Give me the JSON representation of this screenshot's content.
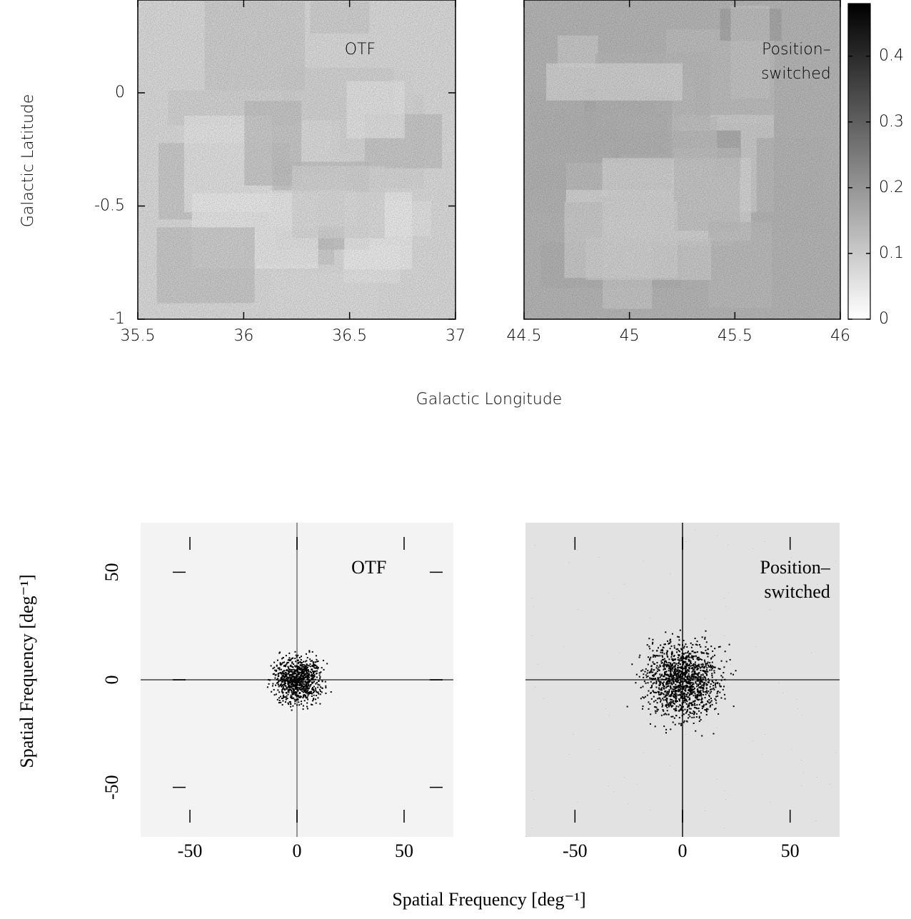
{
  "chart_data": [
    {
      "type": "heatmap",
      "annotation": [
        "OTF"
      ],
      "xlim": [
        35.5,
        37
      ],
      "ylim": [
        -1,
        0.41
      ],
      "xticks": [
        35.5,
        36,
        36.5,
        37
      ],
      "yticks": [
        0,
        -0.5,
        -1
      ],
      "xlabel": "Galactic Longitude",
      "ylabel": "Galactic Latitude"
    },
    {
      "type": "heatmap",
      "annotation": [
        "Position–",
        "switched"
      ],
      "xlim": [
        44.5,
        46
      ],
      "ylim": [
        -1,
        0.41
      ],
      "xticks": [
        44.5,
        45,
        45.5,
        46
      ],
      "colorbar": {
        "lim": [
          0,
          0.48
        ],
        "ticks": [
          0,
          0.1,
          0.2,
          0.3,
          0.4
        ]
      }
    },
    {
      "type": "power_spectrum",
      "annotation": [
        "OTF"
      ],
      "xlim": [
        -73,
        73
      ],
      "ylim": [
        -73,
        73
      ],
      "xticks": [
        -50,
        0,
        50
      ],
      "yticks": [
        -50,
        0,
        50
      ],
      "xlabel": "Spatial Frequency [deg⁻¹]",
      "ylabel": "Spatial Frequency [deg⁻¹]"
    },
    {
      "type": "power_spectrum",
      "annotation": [
        "Position–",
        "switched"
      ],
      "xlim": [
        -73,
        73
      ],
      "ylim": [
        -73,
        73
      ],
      "xticks": [
        -50,
        0,
        50
      ]
    }
  ]
}
